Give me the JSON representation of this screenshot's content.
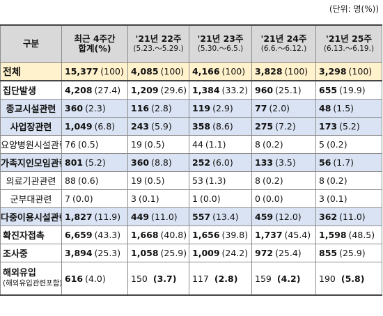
{
  "unit_note": "(단위: 명(%))",
  "header": {
    "col0": "구분",
    "col1_line1": "최근 4주간",
    "col1_line2": "합계(%)",
    "weeks": [
      {
        "title": "'21년 22주",
        "range": "(5.23.～5.29.)"
      },
      {
        "title": "'21년 23주",
        "range": "(5.30.～6.5.)"
      },
      {
        "title": "'21년 24주",
        "range": "(6.6.～6.12.)"
      },
      {
        "title": "'21년 25주",
        "range": "(6.13.～6.19.)"
      }
    ]
  },
  "rows": [
    {
      "label": "전체",
      "cells": [
        [
          "15,377",
          "(100)"
        ],
        [
          "4,085",
          "(100)"
        ],
        [
          "4,166",
          "(100)"
        ],
        [
          "3,828",
          "(100)"
        ],
        [
          "3,298",
          "(100)"
        ]
      ]
    },
    {
      "label": "집단발생",
      "cells": [
        [
          "4,208",
          "(27.4)"
        ],
        [
          "1,209",
          "(29.6)"
        ],
        [
          "1,384",
          "(33.2)"
        ],
        [
          "960",
          "(25.1)"
        ],
        [
          "655",
          "(19.9)"
        ]
      ]
    },
    {
      "label": "종교시설관련",
      "cells": [
        [
          "360",
          "(2.3)"
        ],
        [
          "116",
          "(2.8)"
        ],
        [
          "119",
          "(2.9)"
        ],
        [
          "77",
          "(2.0)"
        ],
        [
          "48",
          "(1.5)"
        ]
      ]
    },
    {
      "label": "사업장관련",
      "cells": [
        [
          "1,049",
          "(6.8)"
        ],
        [
          "243",
          "(5.9)"
        ],
        [
          "358",
          "(8.6)"
        ],
        [
          "275",
          "(7.2)"
        ],
        [
          "173",
          "(5.2)"
        ]
      ]
    },
    {
      "label": "요양병원시설관련",
      "cells": [
        [
          "76",
          "(0.5)"
        ],
        [
          "19",
          "(0.5)"
        ],
        [
          "44",
          "(1.1)"
        ],
        [
          "8",
          "(0.2)"
        ],
        [
          "5",
          "(0.2)"
        ]
      ]
    },
    {
      "label": "가족지인모임관련",
      "cells": [
        [
          "801",
          "(5.2)"
        ],
        [
          "360",
          "(8.8)"
        ],
        [
          "252",
          "(6.0)"
        ],
        [
          "133",
          "(3.5)"
        ],
        [
          "56",
          "(1.7)"
        ]
      ]
    },
    {
      "label": "의료기관관련",
      "cells": [
        [
          "88",
          "(0.6)"
        ],
        [
          "19",
          "(0.5)"
        ],
        [
          "53",
          "(1.3)"
        ],
        [
          "8",
          "(0.2)"
        ],
        [
          "8",
          "(0.2)"
        ]
      ]
    },
    {
      "label": "군부대관련",
      "cells": [
        [
          "7",
          "(0.0)"
        ],
        [
          "3",
          "(0.1)"
        ],
        [
          "1",
          "(0.0)"
        ],
        [
          "0",
          "(0.0)"
        ],
        [
          "3",
          "(0.1)"
        ]
      ]
    },
    {
      "label": "다중이용시설관련",
      "cells": [
        [
          "1,827",
          "(11.9)"
        ],
        [
          "449",
          "(11.0)"
        ],
        [
          "557",
          "(13.4)"
        ],
        [
          "459",
          "(12.0)"
        ],
        [
          "362",
          "(11.0)"
        ]
      ]
    },
    {
      "label": "확진자접촉",
      "cells": [
        [
          "6,659",
          "(43.3)"
        ],
        [
          "1,668",
          "(40.8)"
        ],
        [
          "1,656",
          "(39.8)"
        ],
        [
          "1,737",
          "(45.4)"
        ],
        [
          "1,598",
          "(48.5)"
        ]
      ]
    },
    {
      "label": "조사중",
      "cells": [
        [
          "3,894",
          "(25.3)"
        ],
        [
          "1,058",
          "(25.9)"
        ],
        [
          "1,009",
          "(24.2)"
        ],
        [
          "972",
          "(25.4)"
        ],
        [
          "855",
          "(25.9)"
        ]
      ]
    },
    {
      "label": "해외유입",
      "sublabel": "(해외유입관련포함)",
      "cells": [
        [
          "616",
          "(4.0)"
        ],
        [
          "150",
          "(3.7)"
        ],
        [
          "117",
          "(2.8)"
        ],
        [
          "159",
          "(4.2)"
        ],
        [
          "190",
          "(5.8)"
        ]
      ]
    }
  ]
}
